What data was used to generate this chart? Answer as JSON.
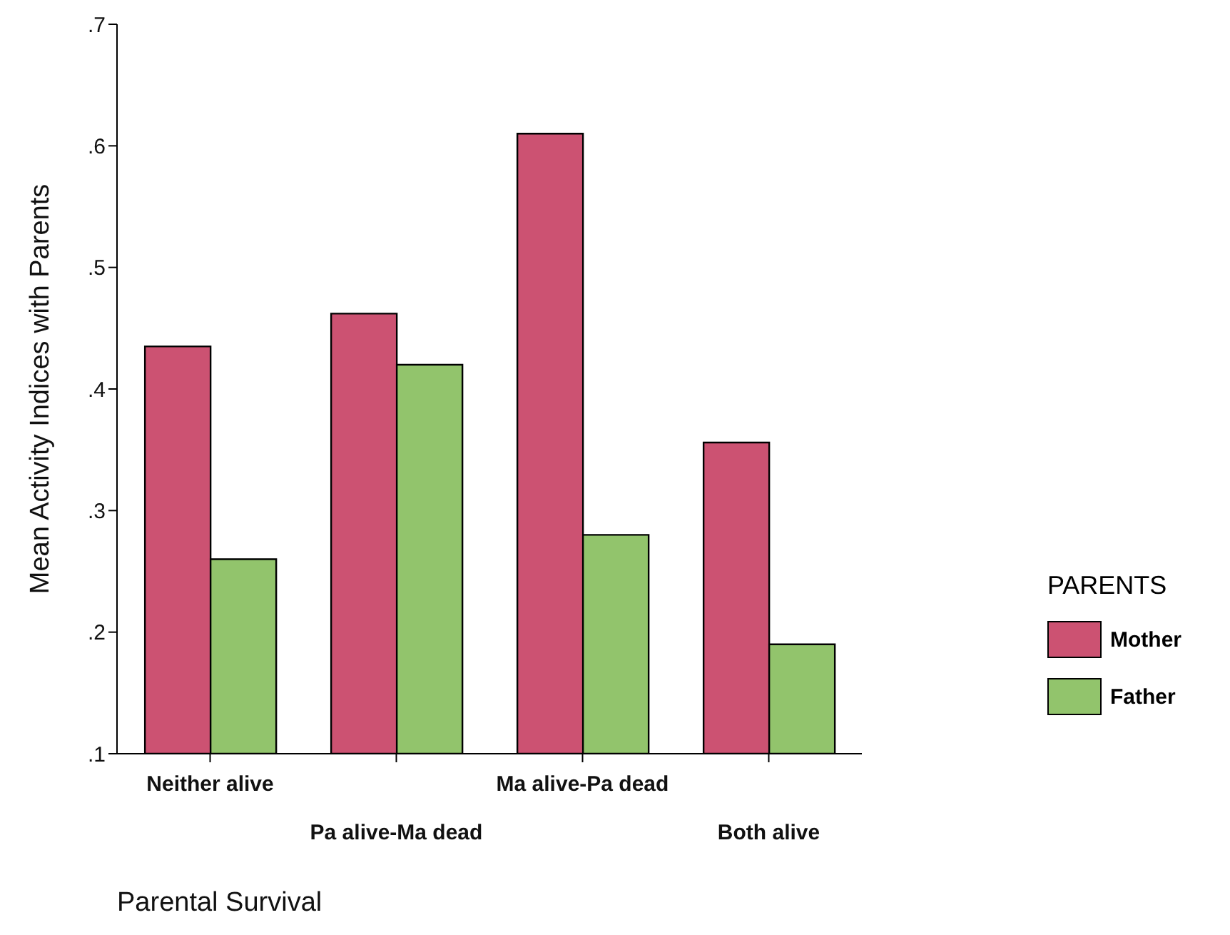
{
  "chart_data": {
    "type": "bar",
    "xlabel": "Parental Survival",
    "ylabel": "Mean Activity Indices with Parents",
    "legend_title": "PARENTS",
    "legend": "right",
    "categories": [
      "Neither alive",
      "Pa alive-Ma dead",
      "Ma alive-Pa dead",
      "Both alive"
    ],
    "series": [
      {
        "name": "Mother",
        "color": "#cc5272",
        "values": [
          0.435,
          0.462,
          0.61,
          0.356
        ]
      },
      {
        "name": "Father",
        "color": "#92c46c",
        "values": [
          0.26,
          0.42,
          0.28,
          0.19
        ]
      }
    ],
    "ylim": [
      0.1,
      0.7
    ],
    "yticks": [
      {
        "value": 0.1,
        "label": ".1"
      },
      {
        "value": 0.2,
        "label": ".2"
      },
      {
        "value": 0.3,
        "label": ".3"
      },
      {
        "value": 0.4,
        "label": ".4"
      },
      {
        "value": 0.5,
        "label": ".5"
      },
      {
        "value": 0.6,
        "label": ".6"
      },
      {
        "value": 0.7,
        "label": ".7"
      }
    ],
    "grid": false
  }
}
